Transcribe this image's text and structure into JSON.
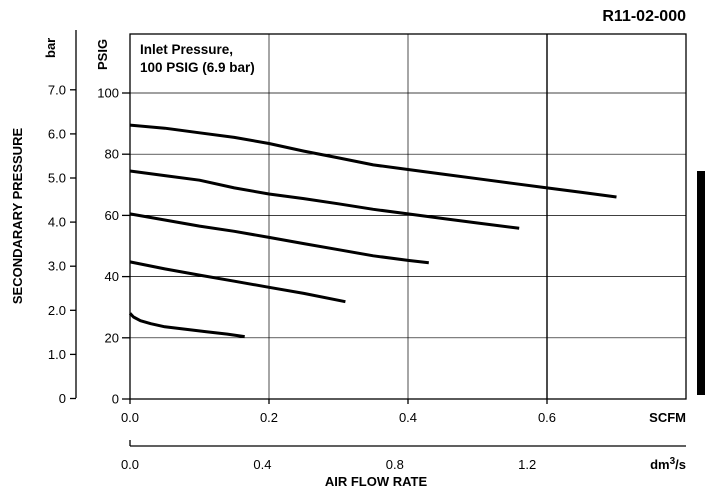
{
  "document_id": "R11-02-000",
  "chart_data": {
    "type": "line",
    "annotation": "Inlet Pressure,\n100 PSIG (6.9 bar)",
    "y_left_unit": "bar",
    "y_psig_unit": "PSIG",
    "ylabel": "SECONDARARY PRESSURE",
    "x_scfm_unit": "SCFM",
    "x_dm3s_unit_base": "dm",
    "x_dm3s_unit_sup": "3",
    "x_dm3s_unit_tail": "/s",
    "xlabel": "AIR FLOW RATE",
    "xlim": [
      0,
      0.8
    ],
    "ylim": [
      0,
      100
    ],
    "grid": true,
    "x_scfm_ticks": [
      "0.0",
      "0.2",
      "0.4",
      "0.6"
    ],
    "x_dm3s_ticks": [
      "0.0",
      "0.4",
      "0.8",
      "1.2"
    ],
    "y_psig_ticks": [
      "0",
      "20",
      "40",
      "60",
      "80",
      "100"
    ],
    "y_bar_ticks": [
      "0",
      "1.0",
      "2.0",
      "3.0",
      "4.0",
      "5.0",
      "6.0",
      "7.0"
    ],
    "series": [
      {
        "x": [
          0.0,
          0.05,
          0.1,
          0.15,
          0.2,
          0.25,
          0.3,
          0.35,
          0.4,
          0.45,
          0.5,
          0.55,
          0.6,
          0.65,
          0.7
        ],
        "y": [
          89.5,
          88.5,
          87.0,
          85.5,
          83.5,
          81.0,
          78.8,
          76.5,
          75.0,
          73.5,
          72.0,
          70.5,
          69.0,
          67.5,
          66.0
        ]
      },
      {
        "x": [
          0.0,
          0.05,
          0.1,
          0.15,
          0.2,
          0.25,
          0.3,
          0.35,
          0.4,
          0.45,
          0.5,
          0.56
        ],
        "y": [
          74.5,
          73.0,
          71.5,
          69.0,
          67.0,
          65.5,
          63.8,
          62.0,
          60.5,
          59.0,
          57.5,
          55.8
        ]
      },
      {
        "x": [
          0.0,
          0.05,
          0.1,
          0.15,
          0.2,
          0.25,
          0.3,
          0.35,
          0.4,
          0.43
        ],
        "y": [
          60.5,
          58.5,
          56.5,
          54.8,
          52.8,
          50.8,
          48.8,
          46.8,
          45.3,
          44.5
        ]
      },
      {
        "x": [
          0.0,
          0.05,
          0.1,
          0.15,
          0.2,
          0.25,
          0.31
        ],
        "y": [
          44.8,
          42.5,
          40.5,
          38.5,
          36.5,
          34.5,
          31.8
        ]
      },
      {
        "x": [
          0.0,
          0.005,
          0.015,
          0.03,
          0.05,
          0.08,
          0.11,
          0.14,
          0.165
        ],
        "y": [
          28.0,
          26.8,
          25.6,
          24.6,
          23.6,
          22.8,
          22.0,
          21.2,
          20.4
        ]
      }
    ]
  }
}
